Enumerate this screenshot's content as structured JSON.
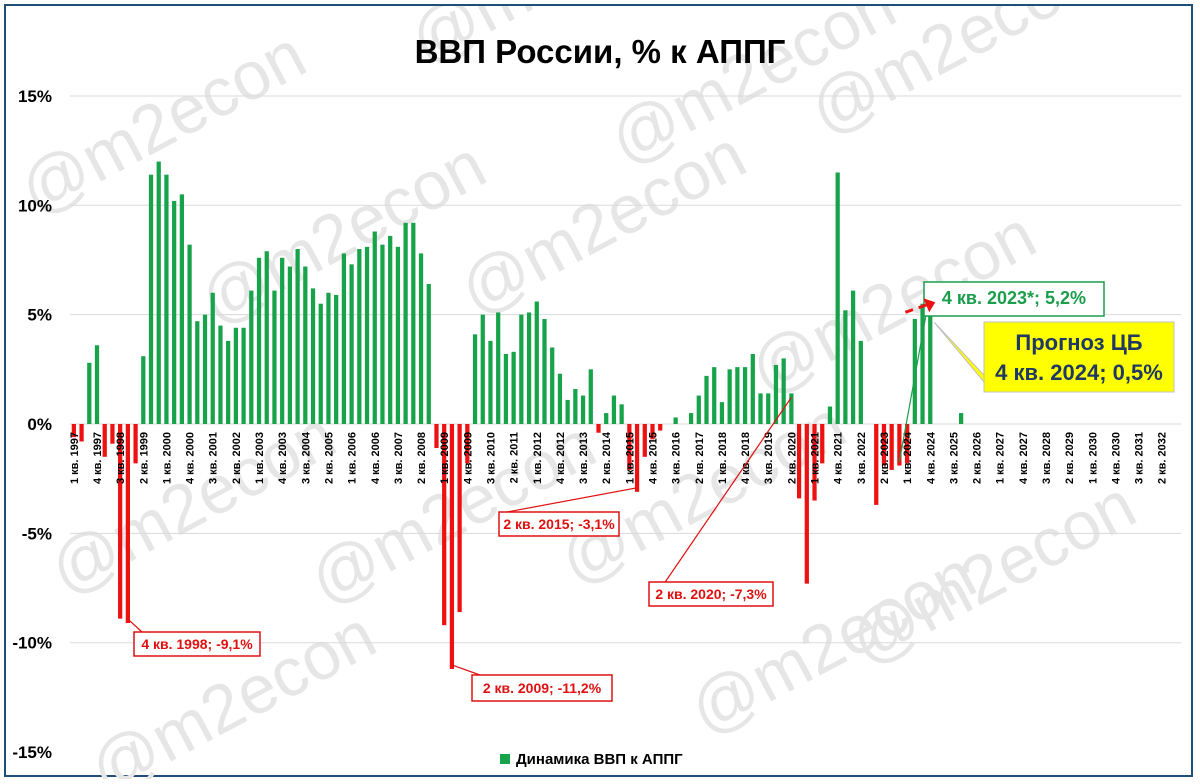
{
  "chart_data": {
    "type": "bar",
    "title": "ВВП России, % к АППГ",
    "ylim": [
      -15,
      15
    ],
    "yticks": [
      "15%",
      "10%",
      "5%",
      "0%",
      "-5%",
      "-10%",
      "-15%"
    ],
    "ytick_values": [
      15,
      10,
      5,
      0,
      -5,
      -10,
      -15
    ],
    "grid": true,
    "legend_position": "bottom",
    "series": [
      {
        "name": "Динамика ВВП к АППГ",
        "color": "#16a34a",
        "negative_color": "#ee1111"
      }
    ],
    "start_year": 1997,
    "end_year": 2032,
    "xtick_labels": [
      "1 кв. 1997",
      "4 кв. 1997",
      "3 кв. 1998",
      "2 кв. 1999",
      "1 кв. 2000",
      "4 кв. 2000",
      "3 кв. 2001",
      "2 кв. 2002",
      "1 кв. 2003",
      "4 кв. 2003",
      "3 кв. 2004",
      "2 кв. 2005",
      "1 кв. 2006",
      "4 кв. 2006",
      "3 кв. 2007",
      "2 кв. 2008",
      "1 кв. 2009",
      "4 кв. 2009",
      "3 кв. 2010",
      "2 кв. 2011",
      "1 кв. 2012",
      "4 кв. 2012",
      "3 кв. 2013",
      "2 кв. 2014",
      "1 кв. 2015",
      "4 кв. 2015",
      "3 кв. 2016",
      "2 кв. 2017",
      "1 кв. 2018",
      "4 кв. 2018",
      "3 кв. 2019",
      "2 кв. 2020",
      "1 кв. 2021",
      "4 кв. 2021",
      "3 кв. 2022",
      "2 кв. 2023",
      "1 кв. 2024",
      "4 кв. 2024",
      "3 кв. 2025",
      "2 кв. 2026",
      "1 кв. 2027",
      "4 кв. 2027",
      "3 кв. 2028",
      "2 кв. 2029",
      "1 кв. 2030",
      "4 кв. 2030",
      "3 кв. 2031",
      "2 кв. 2032"
    ],
    "values": [
      -0.6,
      -0.8,
      2.8,
      3.6,
      -1.5,
      -0.9,
      -8.9,
      -9.1,
      -1.8,
      3.1,
      11.4,
      12.0,
      11.4,
      10.2,
      10.5,
      8.2,
      4.7,
      5.0,
      6.0,
      4.5,
      3.8,
      4.4,
      4.4,
      6.1,
      7.6,
      7.9,
      6.1,
      7.6,
      7.2,
      8.0,
      7.2,
      6.2,
      5.5,
      6.0,
      5.9,
      7.8,
      7.3,
      8.0,
      8.1,
      8.8,
      8.2,
      8.6,
      8.1,
      9.2,
      9.2,
      7.8,
      6.4,
      -1.1,
      -9.2,
      -11.2,
      -8.6,
      -1.8,
      4.1,
      5.0,
      3.8,
      5.1,
      3.2,
      3.3,
      5.0,
      5.1,
      5.6,
      4.8,
      3.5,
      2.3,
      1.1,
      1.6,
      1.3,
      2.5,
      -0.4,
      0.5,
      1.3,
      0.9,
      -2.1,
      -3.1,
      -1.5,
      -0.7,
      -0.3,
      0.0,
      0.3,
      0.0,
      0.5,
      1.3,
      2.2,
      2.6,
      1.0,
      2.5,
      2.6,
      2.6,
      3.2,
      1.4,
      1.4,
      2.7,
      3.0,
      1.4,
      -3.4,
      -7.3,
      -3.5,
      -1.8,
      0.8,
      11.5,
      5.2,
      6.1,
      3.8,
      0.0,
      -3.7,
      -1.9,
      -2.1,
      -1.9,
      -1.8,
      4.8,
      5.5,
      5.2,
      null,
      null,
      null,
      0.5
    ],
    "forecast_index": 111,
    "annotations": [
      {
        "text": "4 кв. 1998; -9,1%",
        "target_index": 7,
        "color": "#e01010"
      },
      {
        "text": "2 кв. 2009; -11,2%",
        "target_index": 49,
        "color": "#e01010"
      },
      {
        "text": "2 кв. 2015; -3,1%",
        "target_index": 73,
        "color": "#e01010"
      },
      {
        "text": "2 кв. 2020; -7,3%",
        "target_index": 93,
        "color": "#e01010"
      },
      {
        "text": "4 кв. 2023*; 5,2%",
        "target_index": 107,
        "color": "#1a9e4b"
      },
      {
        "text_lines": [
          "Прогноз ЦБ",
          "4 кв. 2024; 0,5%"
        ],
        "target_index": 111,
        "color": "#1f3864",
        "fill": "#ffff00"
      }
    ]
  },
  "watermark": "@m2econ"
}
